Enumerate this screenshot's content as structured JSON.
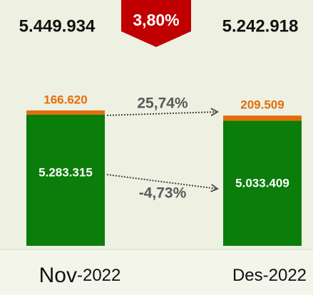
{
  "chart_data": {
    "type": "bar",
    "stacked": true,
    "categories": [
      "Nov-2022",
      "Des-2022"
    ],
    "series": [
      {
        "name": "Green",
        "color": "#0a7d0a",
        "values": [
          5283315,
          5033409
        ],
        "value_labels": [
          "5.283.315",
          "5.033.409"
        ]
      },
      {
        "name": "Orange",
        "color": "#e46c0a",
        "values": [
          166620,
          209509
        ],
        "value_labels": [
          "166.620",
          "209.509"
        ]
      }
    ],
    "totals": {
      "values": [
        5449934,
        5242918
      ],
      "value_labels": [
        "5.449.934",
        "5.242.918"
      ]
    },
    "total_change": {
      "value": -3.8,
      "label": "3,80%"
    },
    "changes": [
      {
        "series": 1,
        "value": 25.74,
        "label": "25,74%"
      },
      {
        "series": 0,
        "value": -4.73,
        "label": "-4,73%"
      }
    ]
  }
}
